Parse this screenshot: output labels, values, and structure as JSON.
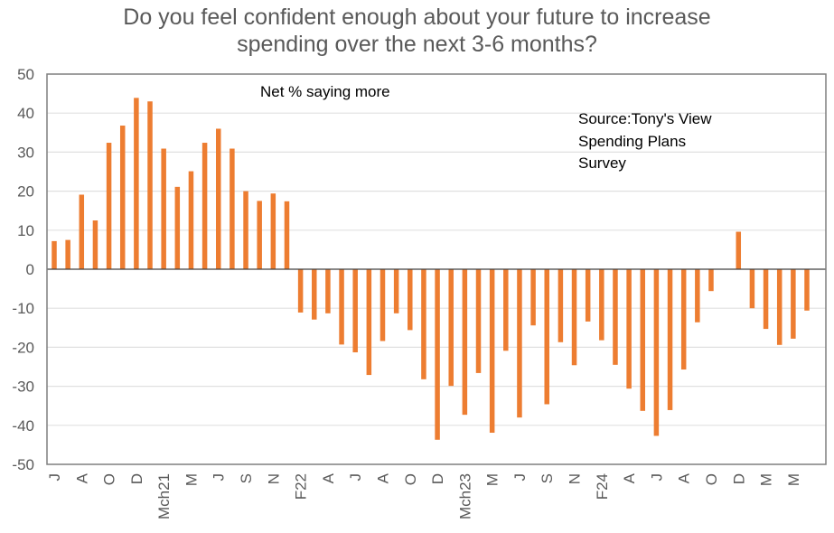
{
  "chart_data": {
    "type": "bar",
    "title": [
      "Do you feel confident enough about your future to increase",
      "spending over the next 3-6 months?"
    ],
    "xlabel": "",
    "ylabel": "",
    "ylim": [
      -50,
      50
    ],
    "yticks": [
      50,
      40,
      30,
      20,
      10,
      0,
      -10,
      -20,
      -30,
      -40,
      -50
    ],
    "grid": true,
    "legend": "none",
    "bar_color": "#ED7D31",
    "annotations": [
      {
        "text": "Net % saying more",
        "position": "top-center"
      },
      {
        "lines": [
          "Source:Tony's View",
          "Spending Plans",
          "Survey"
        ],
        "position": "top-right"
      }
    ],
    "categories": [
      "J",
      "",
      "A",
      "",
      "O",
      "",
      "D",
      "",
      "Mch21",
      "",
      "M",
      "",
      "J",
      "",
      "S",
      "",
      "N",
      "",
      "F22",
      "",
      "A",
      "",
      "J",
      "",
      "A",
      "",
      "O",
      "",
      "D",
      "",
      "Mch23",
      "",
      "M",
      "",
      "J",
      "",
      "S",
      "",
      "N",
      "",
      "F24",
      "",
      "A",
      "",
      "J",
      "",
      "A",
      "",
      "O",
      "",
      "D",
      "",
      "M",
      "",
      "M",
      ""
    ],
    "series": [
      {
        "name": "Net % saying more",
        "values": [
          7.2,
          7.5,
          19.1,
          12.5,
          32.4,
          36.8,
          43.9,
          43.0,
          30.9,
          21.1,
          25.1,
          32.4,
          36.0,
          30.9,
          20.0,
          17.5,
          19.4,
          17.4,
          -11.1,
          -12.9,
          -11.3,
          -19.3,
          -21.3,
          -27.1,
          -18.4,
          -11.3,
          -15.6,
          -28.2,
          -43.7,
          -29.9,
          -37.3,
          -26.6,
          -41.9,
          -20.9,
          -38.0,
          -14.4,
          -34.6,
          -18.7,
          -24.6,
          -13.4,
          -18.2,
          -24.5,
          -30.6,
          -36.3,
          -42.7,
          -36.1,
          -25.7,
          -13.6,
          -5.6,
          null,
          9.6,
          -10.0,
          -15.3,
          -19.4,
          -17.8,
          -10.6
        ]
      }
    ]
  }
}
